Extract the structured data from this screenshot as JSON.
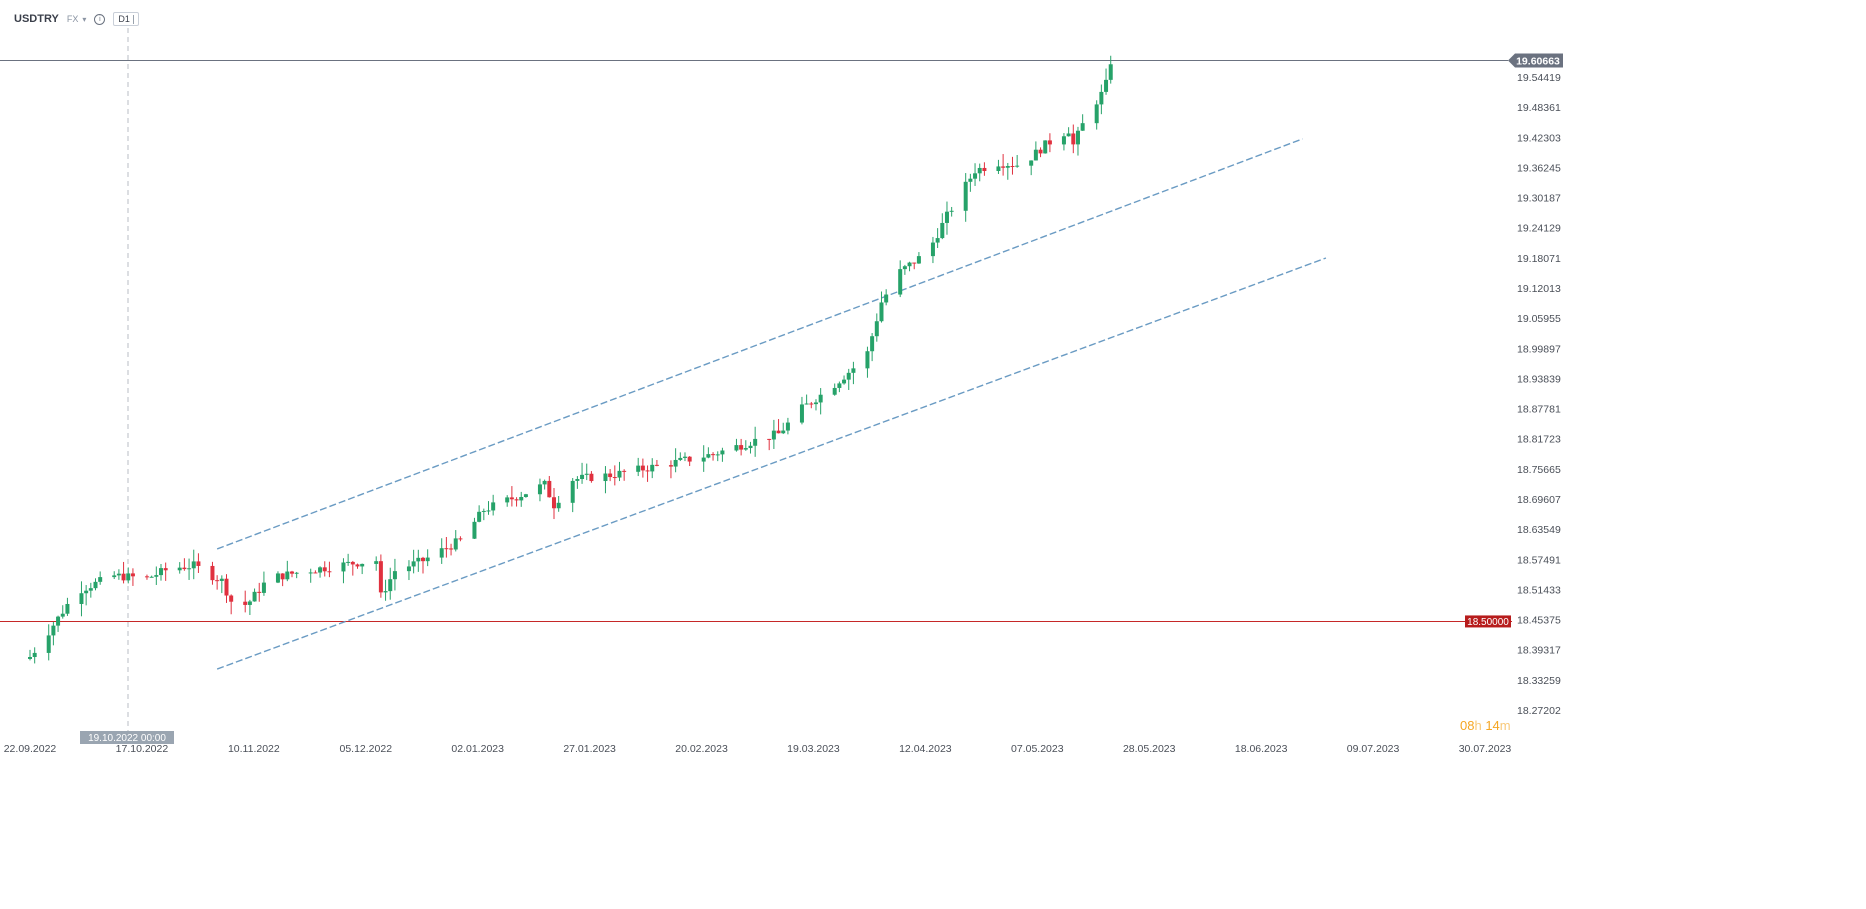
{
  "header": {
    "symbol": "USDTRY",
    "market": "FX",
    "timeframe": "D1",
    "info_icon": "info-icon",
    "dropdown_icon": "chevron-down-icon"
  },
  "crosshair": {
    "date_label": "19.10.2022 00:00"
  },
  "countdown": {
    "hours": "08",
    "hours_unit": "h",
    "minutes": "14",
    "minutes_unit": "m"
  },
  "colors": {
    "up": "#26a269",
    "down": "#e0313f",
    "channel": "#6a9bc3",
    "support": "#c62828",
    "current_price_tag": "#6b7280",
    "countdown": "#f5a623"
  },
  "chart_data": {
    "type": "candlestick",
    "timeframe": "D1",
    "x_range": [
      "2022-09-22",
      "2023-07-30"
    ],
    "ylim": [
      18.27202,
      19.6372
    ],
    "x_tick_labels": [
      "22.09.2022",
      "17.10.2022",
      "10.11.2022",
      "05.12.2022",
      "02.01.2023",
      "27.01.2023",
      "20.02.2023",
      "19.03.2023",
      "12.04.2023",
      "07.05.2023",
      "28.05.2023",
      "18.06.2023",
      "09.07.2023",
      "30.07.2023"
    ],
    "y_tick_labels": [
      "19.54419",
      "19.48361",
      "19.42303",
      "19.36245",
      "19.30187",
      "19.24129",
      "19.18071",
      "19.12013",
      "19.05955",
      "18.99897",
      "18.93839",
      "18.87781",
      "18.81723",
      "18.75665",
      "18.69607",
      "18.63549",
      "18.57491",
      "18.51433",
      "18.45375",
      "18.39317",
      "18.33259",
      "18.27202"
    ],
    "current_price": {
      "label": "19.60663",
      "value": 19.60663
    },
    "horizontal_levels": [
      {
        "label": "18.50000",
        "value": 18.5,
        "color": "#c62828"
      }
    ],
    "channel_lines": [
      {
        "name": "upper",
        "from": [
          "2022-11-01",
          18.643
        ],
        "to": [
          "2023-06-21",
          19.452
        ]
      },
      {
        "name": "lower",
        "from": [
          "2022-11-01",
          18.406
        ],
        "to": [
          "2023-06-26",
          19.217
        ]
      }
    ],
    "anchors": [
      [
        "2022-09-22",
        18.43
      ],
      [
        "2022-09-26",
        18.48
      ],
      [
        "2022-10-02",
        18.56
      ],
      [
        "2022-10-10",
        18.59
      ],
      [
        "2022-10-17",
        18.585
      ],
      [
        "2022-10-22",
        18.605
      ],
      [
        "2022-10-27",
        18.61
      ],
      [
        "2022-11-02",
        18.58
      ],
      [
        "2022-11-05",
        18.52
      ],
      [
        "2022-11-08",
        18.54
      ],
      [
        "2022-11-12",
        18.585
      ],
      [
        "2022-11-20",
        18.6
      ],
      [
        "2022-11-30",
        18.615
      ],
      [
        "2022-12-05",
        18.62
      ],
      [
        "2022-12-06",
        18.55
      ],
      [
        "2022-12-09",
        18.6
      ],
      [
        "2022-12-15",
        18.62
      ],
      [
        "2022-12-23",
        18.66
      ],
      [
        "2022-12-28",
        18.72
      ],
      [
        "2023-01-05",
        18.75
      ],
      [
        "2023-01-10",
        18.77
      ],
      [
        "2023-01-12",
        18.73
      ],
      [
        "2023-01-16",
        18.78
      ],
      [
        "2023-01-25",
        18.79
      ],
      [
        "2023-02-05",
        18.81
      ],
      [
        "2023-02-15",
        18.83
      ],
      [
        "2023-02-25",
        18.86
      ],
      [
        "2023-03-01",
        18.87
      ],
      [
        "2023-03-06",
        18.92
      ],
      [
        "2023-03-12",
        18.96
      ],
      [
        "2023-03-17",
        19.0
      ],
      [
        "2023-03-20",
        19.03
      ],
      [
        "2023-03-23",
        19.13
      ],
      [
        "2023-03-27",
        19.19
      ],
      [
        "2023-04-02",
        19.23
      ],
      [
        "2023-04-06",
        19.3
      ],
      [
        "2023-04-12",
        19.39
      ],
      [
        "2023-04-17",
        19.405
      ],
      [
        "2023-04-22",
        19.4
      ],
      [
        "2023-04-27",
        19.44
      ],
      [
        "2023-05-02",
        19.47
      ],
      [
        "2023-05-03",
        19.44
      ],
      [
        "2023-05-06",
        19.5
      ],
      [
        "2023-05-09",
        19.54
      ],
      [
        "2023-05-10",
        19.56
      ],
      [
        "2023-05-11",
        19.605
      ]
    ]
  }
}
